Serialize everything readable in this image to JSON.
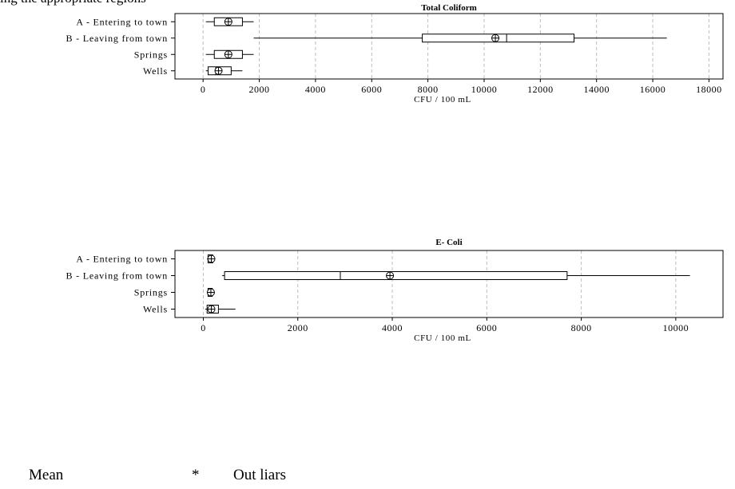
{
  "header_text": "ing the appropriate regions",
  "legend": {
    "mean_label": "Mean",
    "outlier_symbol": "*",
    "outlier_label": "Out liars"
  },
  "chart_data": [
    {
      "type": "boxplot",
      "title": "Total Coliform",
      "xlabel": "CFU / 100 mL",
      "xlim": [
        -1000,
        18500
      ],
      "xticks": [
        0,
        2000,
        4000,
        6000,
        8000,
        10000,
        12000,
        14000,
        16000,
        18000
      ],
      "grid": true,
      "categories": [
        "A - Entering to town",
        "B - Leaving from town",
        "Springs",
        "Wells"
      ],
      "boxes": [
        {
          "category": "A - Entering to town",
          "whisker_low": 100,
          "q1": 400,
          "median": 850,
          "q3": 1400,
          "whisker_high": 1800,
          "mean": 900
        },
        {
          "category": "B - Leaving from town",
          "whisker_low": 1800,
          "q1": 7800,
          "median": 10800,
          "q3": 13200,
          "whisker_high": 16500,
          "mean": 10400
        },
        {
          "category": "Springs",
          "whisker_low": 100,
          "q1": 400,
          "median": 850,
          "q3": 1400,
          "whisker_high": 1800,
          "mean": 900
        },
        {
          "category": "Wells",
          "whisker_low": 100,
          "q1": 180,
          "median": 450,
          "q3": 1000,
          "whisker_high": 1400,
          "mean": 550
        }
      ]
    },
    {
      "type": "boxplot",
      "title": "E- Coli",
      "xlabel": "CFU / 100 mL",
      "xlim": [
        -600,
        11000
      ],
      "xticks": [
        0,
        2000,
        4000,
        6000,
        8000,
        10000
      ],
      "grid": true,
      "categories": [
        "A - Entering to town",
        "B - Leaving from town",
        "Springs",
        "Wells"
      ],
      "boxes": [
        {
          "category": "A - Entering to town",
          "whisker_low": 80,
          "q1": 100,
          "median": 150,
          "q3": 200,
          "whisker_high": 230,
          "mean": 170
        },
        {
          "category": "B - Leaving from town",
          "whisker_low": 400,
          "q1": 450,
          "median": 2900,
          "q3": 7700,
          "whisker_high": 10300,
          "mean": 3950
        },
        {
          "category": "Springs",
          "whisker_low": 80,
          "q1": 100,
          "median": 140,
          "q3": 190,
          "whisker_high": 220,
          "mean": 160
        },
        {
          "category": "Wells",
          "whisker_low": 40,
          "q1": 80,
          "median": 150,
          "q3": 320,
          "whisker_high": 680,
          "mean": 170
        }
      ]
    }
  ]
}
